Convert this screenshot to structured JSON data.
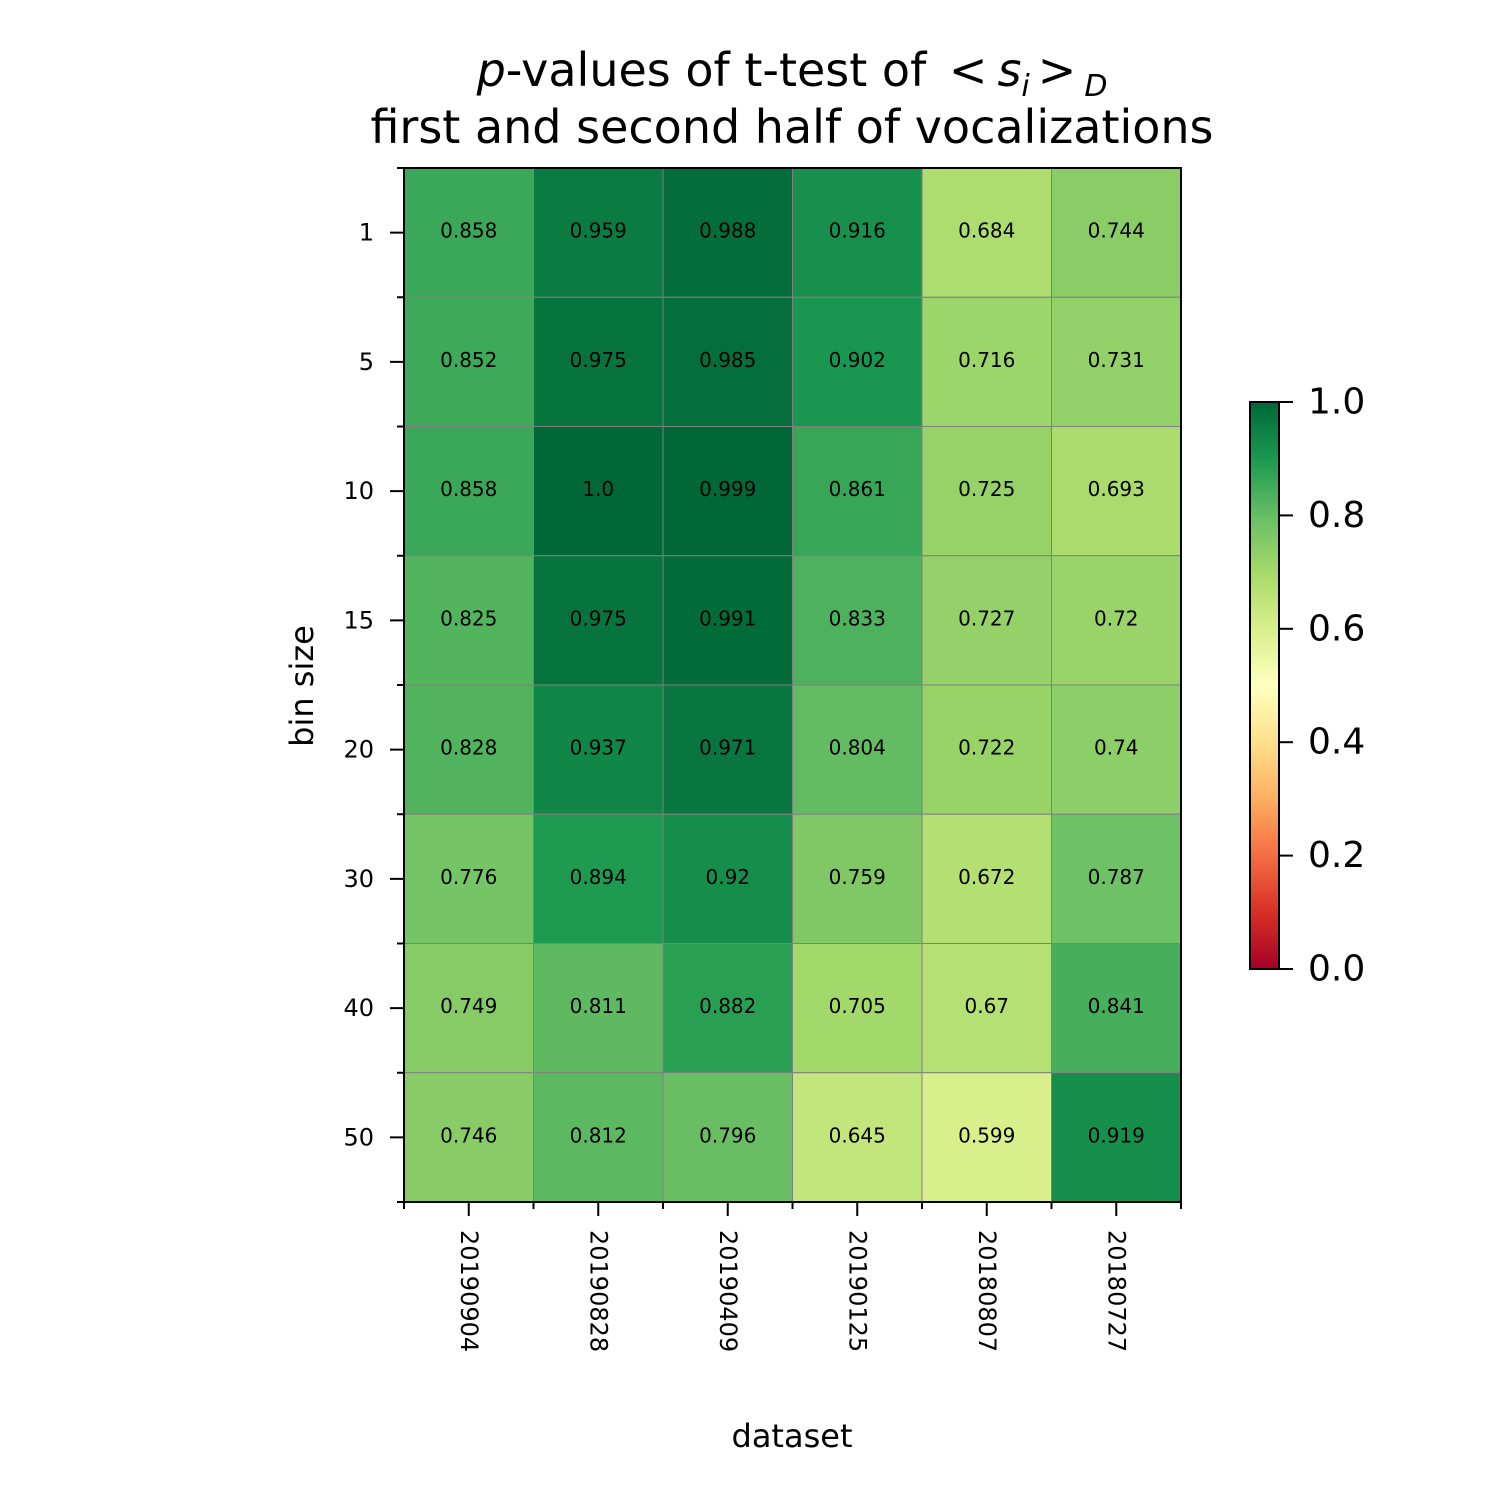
{
  "chart_data": {
    "type": "heatmap",
    "title_line1_prefix": "p",
    "title_line1_rest": "-values of t-test of ",
    "title_math_lt": "<",
    "title_math_s": "s",
    "title_math_i": "i",
    "title_math_gt": ">",
    "title_math_D": "D",
    "title_line2": "first and second half of vocalizations",
    "xlabel": "dataset",
    "ylabel": "bin size",
    "x_categories": [
      "20190904",
      "20190828",
      "20190409",
      "20190125",
      "20180807",
      "20180727"
    ],
    "y_categories": [
      "1",
      "5",
      "10",
      "15",
      "20",
      "30",
      "40",
      "50"
    ],
    "values": [
      [
        0.858,
        0.959,
        0.988,
        0.916,
        0.684,
        0.744
      ],
      [
        0.852,
        0.975,
        0.985,
        0.902,
        0.716,
        0.731
      ],
      [
        0.858,
        1.0,
        0.999,
        0.861,
        0.725,
        0.693
      ],
      [
        0.825,
        0.975,
        0.991,
        0.833,
        0.727,
        0.72
      ],
      [
        0.828,
        0.937,
        0.971,
        0.804,
        0.722,
        0.74
      ],
      [
        0.776,
        0.894,
        0.92,
        0.759,
        0.672,
        0.787
      ],
      [
        0.749,
        0.811,
        0.882,
        0.705,
        0.67,
        0.841
      ],
      [
        0.746,
        0.812,
        0.796,
        0.645,
        0.599,
        0.919
      ]
    ],
    "cell_text": [
      [
        "0.858",
        "0.959",
        "0.988",
        "0.916",
        "0.684",
        "0.744"
      ],
      [
        "0.852",
        "0.975",
        "0.985",
        "0.902",
        "0.716",
        "0.731"
      ],
      [
        "0.858",
        "1.0",
        "0.999",
        "0.861",
        "0.725",
        "0.693"
      ],
      [
        "0.825",
        "0.975",
        "0.991",
        "0.833",
        "0.727",
        "0.72"
      ],
      [
        "0.828",
        "0.937",
        "0.971",
        "0.804",
        "0.722",
        "0.74"
      ],
      [
        "0.776",
        "0.894",
        "0.92",
        "0.759",
        "0.672",
        "0.787"
      ],
      [
        "0.749",
        "0.811",
        "0.882",
        "0.705",
        "0.67",
        "0.841"
      ],
      [
        "0.746",
        "0.812",
        "0.796",
        "0.645",
        "0.599",
        "0.919"
      ]
    ],
    "colormap": "RdYlGn",
    "vmin": 0.0,
    "vmax": 1.0,
    "colorbar_ticks": [
      "0.0",
      "0.2",
      "0.4",
      "0.6",
      "0.8",
      "1.0"
    ],
    "cell_border_color": "#808080"
  }
}
